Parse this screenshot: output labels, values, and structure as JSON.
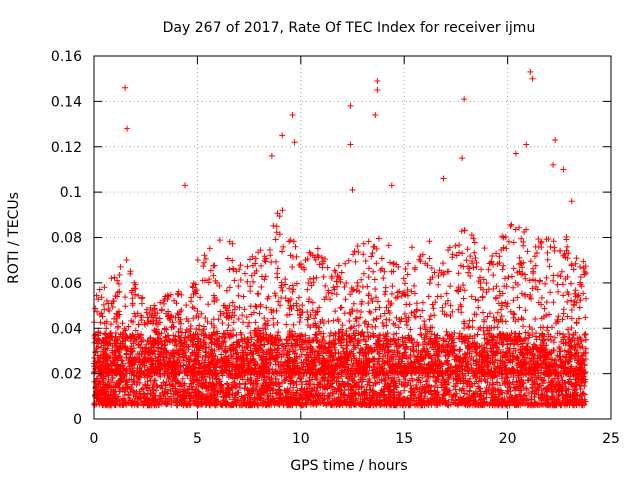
{
  "chart_data": {
    "type": "scatter",
    "title": "Day 267 of 2017, Rate Of TEC Index for receiver ijmu",
    "xlabel": "GPS time / hours",
    "ylabel": "ROTI / TECUs",
    "xlim": [
      0,
      25
    ],
    "ylim": [
      0,
      0.16
    ],
    "xticks": [
      "0",
      "5",
      "10",
      "15",
      "20",
      "25"
    ],
    "yticks": [
      "0",
      "0.02",
      "0.04",
      "0.06",
      "0.08",
      "0.1",
      "0.12",
      "0.14",
      "0.16"
    ],
    "grid": true,
    "marker": "plus",
    "color": "#ff0000",
    "series": [
      {
        "name": "ROTI",
        "notable_points": [
          {
            "x": 1.5,
            "y": 0.146
          },
          {
            "x": 1.6,
            "y": 0.128
          },
          {
            "x": 4.4,
            "y": 0.103
          },
          {
            "x": 9.6,
            "y": 0.134
          },
          {
            "x": 9.7,
            "y": 0.122
          },
          {
            "x": 9.1,
            "y": 0.125
          },
          {
            "x": 8.6,
            "y": 0.116
          },
          {
            "x": 12.4,
            "y": 0.138
          },
          {
            "x": 12.4,
            "y": 0.121
          },
          {
            "x": 12.5,
            "y": 0.101
          },
          {
            "x": 13.7,
            "y": 0.149
          },
          {
            "x": 13.7,
            "y": 0.145
          },
          {
            "x": 13.6,
            "y": 0.134
          },
          {
            "x": 14.4,
            "y": 0.103
          },
          {
            "x": 17.9,
            "y": 0.141
          },
          {
            "x": 17.8,
            "y": 0.115
          },
          {
            "x": 16.9,
            "y": 0.106
          },
          {
            "x": 20.9,
            "y": 0.121
          },
          {
            "x": 21.1,
            "y": 0.153
          },
          {
            "x": 21.2,
            "y": 0.15
          },
          {
            "x": 20.4,
            "y": 0.117
          },
          {
            "x": 22.3,
            "y": 0.123
          },
          {
            "x": 22.2,
            "y": 0.112
          },
          {
            "x": 22.7,
            "y": 0.11
          },
          {
            "x": 23.1,
            "y": 0.096
          }
        ],
        "envelope": {
          "x": [
            0,
            0.5,
            1,
            1.5,
            2,
            2.5,
            3,
            3.5,
            4,
            4.5,
            5,
            5.5,
            6,
            6.5,
            7,
            7.5,
            8,
            8.5,
            9,
            9.5,
            10,
            10.5,
            11,
            11.5,
            12,
            12.5,
            13,
            13.5,
            14,
            14.5,
            15,
            15.5,
            16,
            16.5,
            17,
            17.5,
            18,
            18.5,
            19,
            19.5,
            20,
            20.5,
            21,
            21.5,
            22,
            22.5,
            23,
            23.5
          ],
          "typical_max": [
            0.055,
            0.06,
            0.065,
            0.075,
            0.06,
            0.052,
            0.05,
            0.055,
            0.06,
            0.05,
            0.07,
            0.075,
            0.08,
            0.08,
            0.078,
            0.07,
            0.075,
            0.08,
            0.095,
            0.085,
            0.07,
            0.08,
            0.075,
            0.065,
            0.07,
            0.075,
            0.078,
            0.085,
            0.09,
            0.075,
            0.07,
            0.08,
            0.085,
            0.07,
            0.075,
            0.08,
            0.085,
            0.08,
            0.075,
            0.08,
            0.085,
            0.09,
            0.085,
            0.08,
            0.08,
            0.085,
            0.08,
            0.07
          ]
        }
      }
    ]
  }
}
